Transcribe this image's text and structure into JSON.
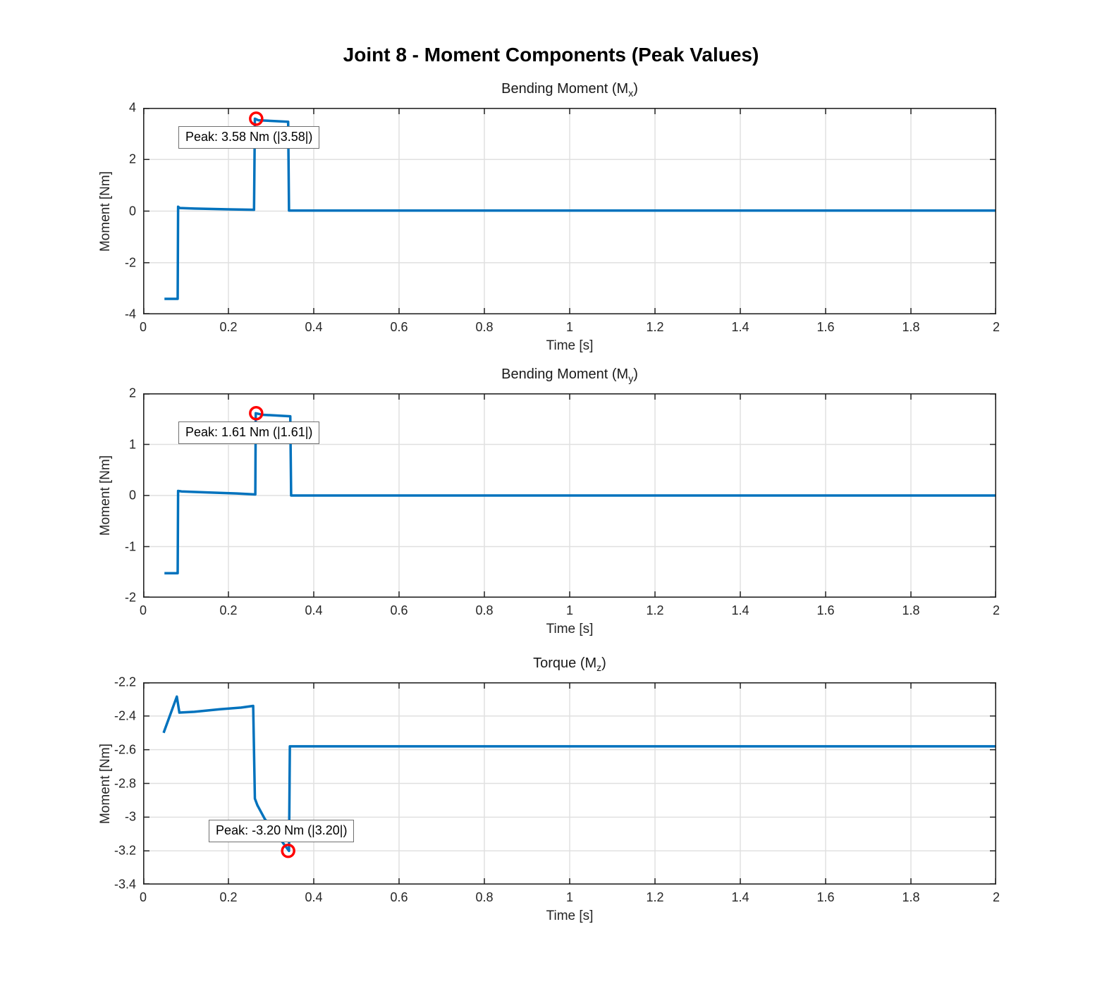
{
  "figure": {
    "title": "Joint 8 - Moment Components (Peak Values)",
    "background": "#ffffff",
    "line_color": "#0072BD",
    "marker_color": "#FF0000",
    "grid_color": "#E0E0E0",
    "axis_color": "#262626",
    "annotation_border_color": "#707070"
  },
  "chart_data": [
    {
      "type": "line",
      "title": {
        "text": "Bending Moment (M",
        "sub": "x",
        "close": ")"
      },
      "xlabel": "Time [s]",
      "ylabel": "Moment [Nm]",
      "xlim": [
        0,
        2
      ],
      "ylim": [
        -4,
        4
      ],
      "grid": true,
      "legend": "none",
      "xticks": [
        0,
        0.2,
        0.4,
        0.6,
        0.8,
        1,
        1.2,
        1.4,
        1.6,
        1.8,
        2
      ],
      "xtick_labels": [
        "0",
        "0.2",
        "0.4",
        "0.6",
        "0.8",
        "1",
        "1.2",
        "1.4",
        "1.6",
        "1.8",
        "2"
      ],
      "yticks": [
        4,
        2,
        0,
        -2,
        -4
      ],
      "ytick_labels": [
        "4",
        "2",
        "0",
        "-2",
        "-4"
      ],
      "series": [
        {
          "name": "Mx",
          "x": [
            0.05,
            0.081,
            0.082,
            0.086,
            0.12,
            0.2,
            0.26,
            0.262,
            0.27,
            0.34,
            0.342,
            2.0
          ],
          "y": [
            -3.4,
            -3.4,
            0.17,
            0.12,
            0.1,
            0.07,
            0.05,
            3.58,
            3.52,
            3.46,
            0.02,
            0.02
          ]
        }
      ],
      "peak": {
        "x": 0.265,
        "y": 3.58,
        "label": "Peak: 3.58 Nm (|3.58|)",
        "box_fx": 0.0413,
        "box_fy": 0.09
      }
    },
    {
      "type": "line",
      "title": {
        "text": "Bending Moment (M",
        "sub": "y",
        "close": ")"
      },
      "xlabel": "Time [s]",
      "ylabel": "Moment [Nm]",
      "xlim": [
        0,
        2
      ],
      "ylim": [
        -2,
        2
      ],
      "grid": true,
      "legend": "none",
      "xticks": [
        0,
        0.2,
        0.4,
        0.6,
        0.8,
        1,
        1.2,
        1.4,
        1.6,
        1.8,
        2
      ],
      "xtick_labels": [
        "0",
        "0.2",
        "0.4",
        "0.6",
        "0.8",
        "1",
        "1.2",
        "1.4",
        "1.6",
        "1.8",
        "2"
      ],
      "yticks": [
        2,
        1,
        0,
        -1,
        -2
      ],
      "ytick_labels": [
        "2",
        "1",
        "0",
        "-1",
        "-2"
      ],
      "series": [
        {
          "name": "My",
          "x": [
            0.05,
            0.081,
            0.082,
            0.09,
            0.15,
            0.22,
            0.263,
            0.264,
            0.28,
            0.345,
            0.347,
            2.0
          ],
          "y": [
            -1.52,
            -1.52,
            0.09,
            0.08,
            0.06,
            0.04,
            0.02,
            1.61,
            1.58,
            1.55,
            0.0,
            0.0
          ]
        }
      ],
      "peak": {
        "x": 0.265,
        "y": 1.61,
        "label": "Peak: 1.61 Nm (|1.61|)",
        "box_fx": 0.0413,
        "box_fy": 0.138
      }
    },
    {
      "type": "line",
      "title": {
        "text": "Torque (M",
        "sub": "z",
        "close": ")"
      },
      "xlabel": "Time [s]",
      "ylabel": "Moment [Nm]",
      "xlim": [
        0,
        2
      ],
      "ylim": [
        -3.4,
        -2.2
      ],
      "grid": true,
      "legend": "none",
      "xticks": [
        0,
        0.2,
        0.4,
        0.6,
        0.8,
        1,
        1.2,
        1.4,
        1.6,
        1.8,
        2
      ],
      "xtick_labels": [
        "0",
        "0.2",
        "0.4",
        "0.6",
        "0.8",
        "1",
        "1.2",
        "1.4",
        "1.6",
        "1.8",
        "2"
      ],
      "yticks": [
        -2.2,
        -2.4,
        -2.6,
        -2.8,
        -3,
        -3.2,
        -3.4
      ],
      "ytick_labels": [
        "-2.2",
        "-2.4",
        "-2.6",
        "-2.8",
        "-3",
        "-3.2",
        "-3.4"
      ],
      "series": [
        {
          "name": "Mz",
          "x": [
            0.048,
            0.079,
            0.085,
            0.12,
            0.18,
            0.23,
            0.258,
            0.262,
            0.268,
            0.285,
            0.31,
            0.33,
            0.342,
            0.344,
            2.0
          ],
          "y": [
            -2.5,
            -2.285,
            -2.38,
            -2.375,
            -2.36,
            -2.35,
            -2.34,
            -2.89,
            -2.93,
            -3.01,
            -3.09,
            -3.16,
            -3.2,
            -2.58,
            -2.58
          ]
        }
      ],
      "peak": {
        "x": 0.34,
        "y": -3.2,
        "label": "Peak: -3.20 Nm (|3.20|)",
        "box_fx": 0.0769,
        "box_fy": 0.679
      }
    }
  ]
}
